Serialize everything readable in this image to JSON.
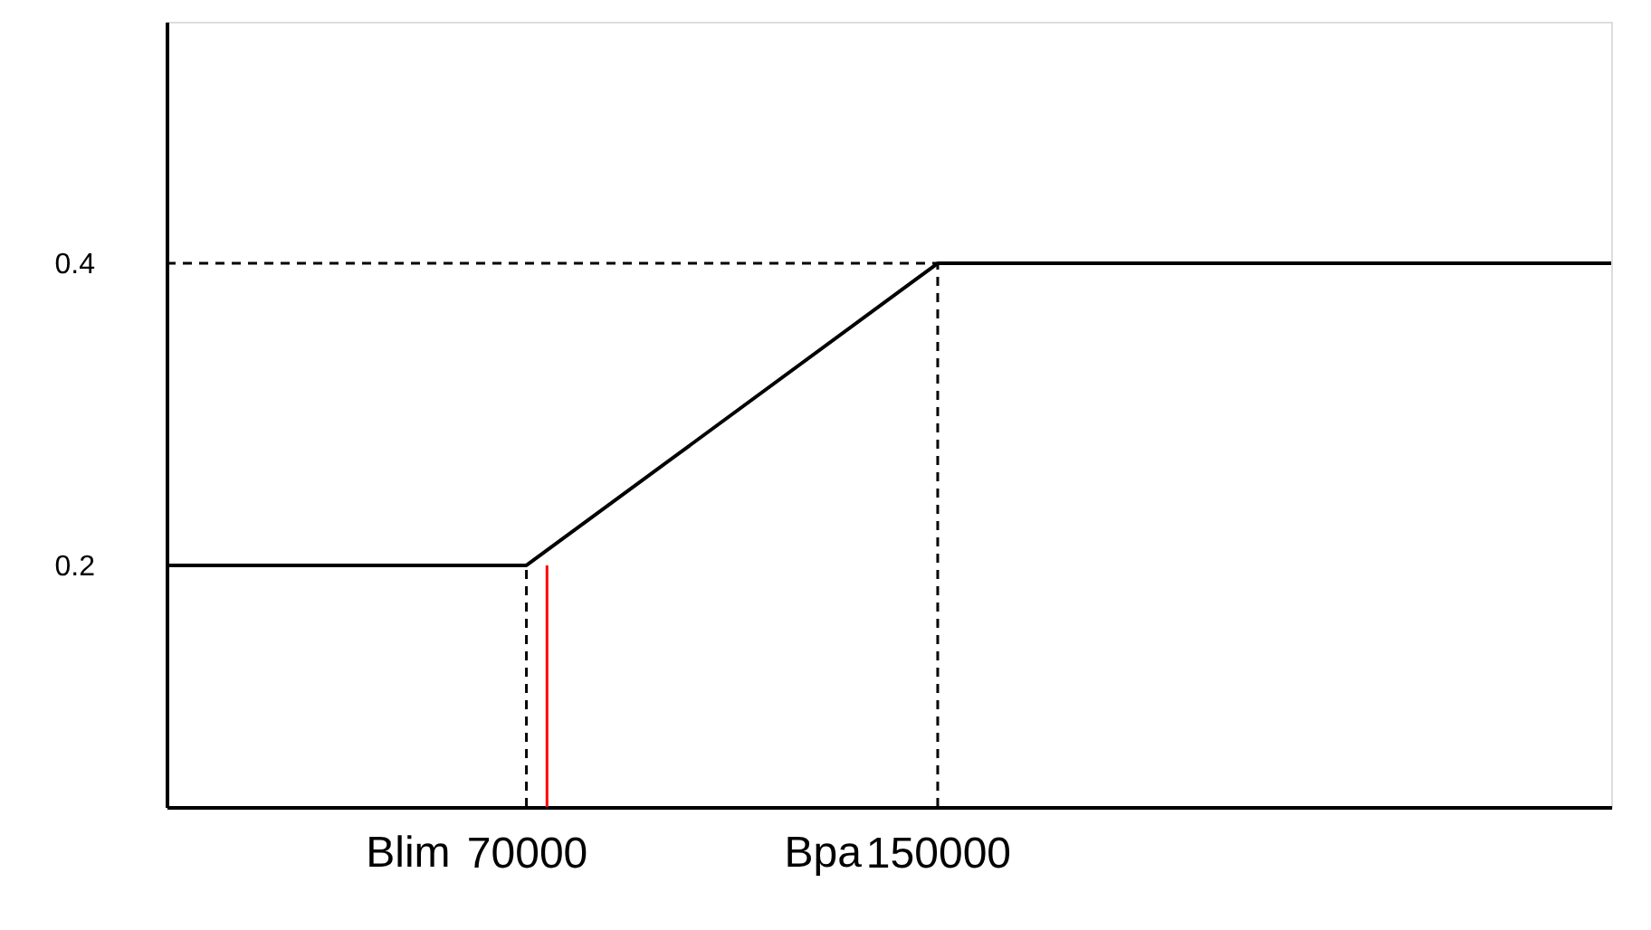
{
  "chart_data": {
    "type": "line",
    "xlim": [
      0,
      281000
    ],
    "ylim": [
      0.04,
      0.56
    ],
    "xticks": [
      70000,
      150000
    ],
    "annotations": [
      "Blim",
      "Bpa"
    ],
    "yticks": [
      0.2,
      0.4
    ],
    "grid": false,
    "marker": "none",
    "series": [
      {
        "color": "#000000",
        "line_style": "solid",
        "x": [
          0,
          70000,
          150000,
          281000
        ],
        "values": [
          0.2,
          0.2,
          0.4,
          0.4
        ]
      },
      {
        "color": "#000000",
        "line_style": "dashed",
        "x": [
          70000,
          70000
        ],
        "values": [
          0.04,
          0.2
        ]
      },
      {
        "color": "#000000",
        "line_style": "dashed",
        "x": [
          150000,
          150000
        ],
        "values": [
          0.04,
          0.4
        ]
      },
      {
        "color": "#000000",
        "line_style": "dashed",
        "x": [
          0,
          150000
        ],
        "values": [
          0.4,
          0.4
        ]
      },
      {
        "color": "#ff0000",
        "line_style": "solid",
        "x": [
          74000,
          74000
        ],
        "values": [
          0.04,
          0.2
        ]
      }
    ]
  }
}
